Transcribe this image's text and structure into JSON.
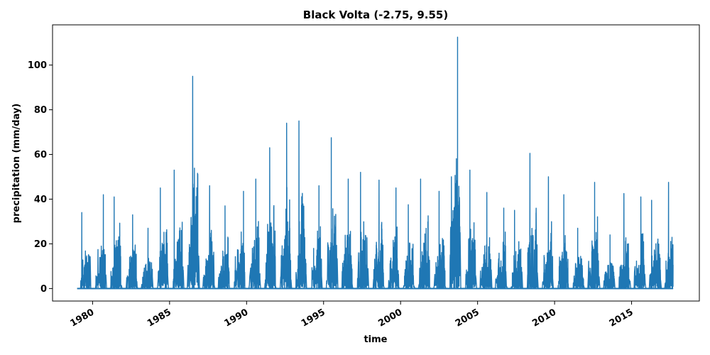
{
  "chart_data": {
    "type": "line",
    "title": "Black Volta (-2.75, 9.55)",
    "xlabel": "time",
    "ylabel": "precipitation (mm/day)",
    "xlim": [
      1977.4,
      2019.4
    ],
    "ylim": [
      -5.6,
      118
    ],
    "x_ticks": [
      1980,
      1985,
      1990,
      1995,
      2000,
      2005,
      2010,
      2015
    ],
    "x_tick_labels": [
      "1980",
      "1985",
      "1990",
      "1995",
      "2000",
      "2005",
      "2010",
      "2015"
    ],
    "y_ticks": [
      0,
      20,
      40,
      60,
      80,
      100
    ],
    "y_tick_labels": [
      "0",
      "20",
      "40",
      "60",
      "80",
      "100"
    ],
    "x_tick_rotation_deg": 30,
    "grid": false,
    "legend": "none",
    "line_color": "#1f77b4",
    "data_range": {
      "start": 1979.0,
      "end": 2017.7
    },
    "series": [
      {
        "annual_peaks": [
          {
            "x": 1979.3,
            "y": 34
          },
          {
            "x": 1980.7,
            "y": 42
          },
          {
            "x": 1981.4,
            "y": 41
          },
          {
            "x": 1982.6,
            "y": 33
          },
          {
            "x": 1983.6,
            "y": 27
          },
          {
            "x": 1984.4,
            "y": 45
          },
          {
            "x": 1985.3,
            "y": 53
          },
          {
            "x": 1986.5,
            "y": 95
          },
          {
            "x": 1987.6,
            "y": 46
          },
          {
            "x": 1988.6,
            "y": 37
          },
          {
            "x": 1989.8,
            "y": 43.5
          },
          {
            "x": 1990.6,
            "y": 49
          },
          {
            "x": 1991.5,
            "y": 63
          },
          {
            "x": 1992.6,
            "y": 74
          },
          {
            "x": 1993.4,
            "y": 75
          },
          {
            "x": 1994.7,
            "y": 46
          },
          {
            "x": 1995.5,
            "y": 67.5
          },
          {
            "x": 1996.6,
            "y": 49
          },
          {
            "x": 1997.4,
            "y": 52
          },
          {
            "x": 1998.6,
            "y": 48.5
          },
          {
            "x": 1999.7,
            "y": 45
          },
          {
            "x": 2000.5,
            "y": 37.5
          },
          {
            "x": 2001.3,
            "y": 49
          },
          {
            "x": 2002.5,
            "y": 43.5
          },
          {
            "x": 2003.3,
            "y": 50
          },
          {
            "x": 2003.7,
            "y": 112.5
          },
          {
            "x": 2004.5,
            "y": 53
          },
          {
            "x": 2005.6,
            "y": 43
          },
          {
            "x": 2006.7,
            "y": 36
          },
          {
            "x": 2007.4,
            "y": 35
          },
          {
            "x": 2008.4,
            "y": 60.5
          },
          {
            "x": 2009.6,
            "y": 50
          },
          {
            "x": 2010.6,
            "y": 42
          },
          {
            "x": 2011.5,
            "y": 27
          },
          {
            "x": 2012.6,
            "y": 47.5
          },
          {
            "x": 2013.6,
            "y": 24
          },
          {
            "x": 2014.5,
            "y": 42.5
          },
          {
            "x": 2015.6,
            "y": 41
          },
          {
            "x": 2016.3,
            "y": 39.5
          },
          {
            "x": 2017.4,
            "y": 47.5
          }
        ]
      }
    ]
  }
}
